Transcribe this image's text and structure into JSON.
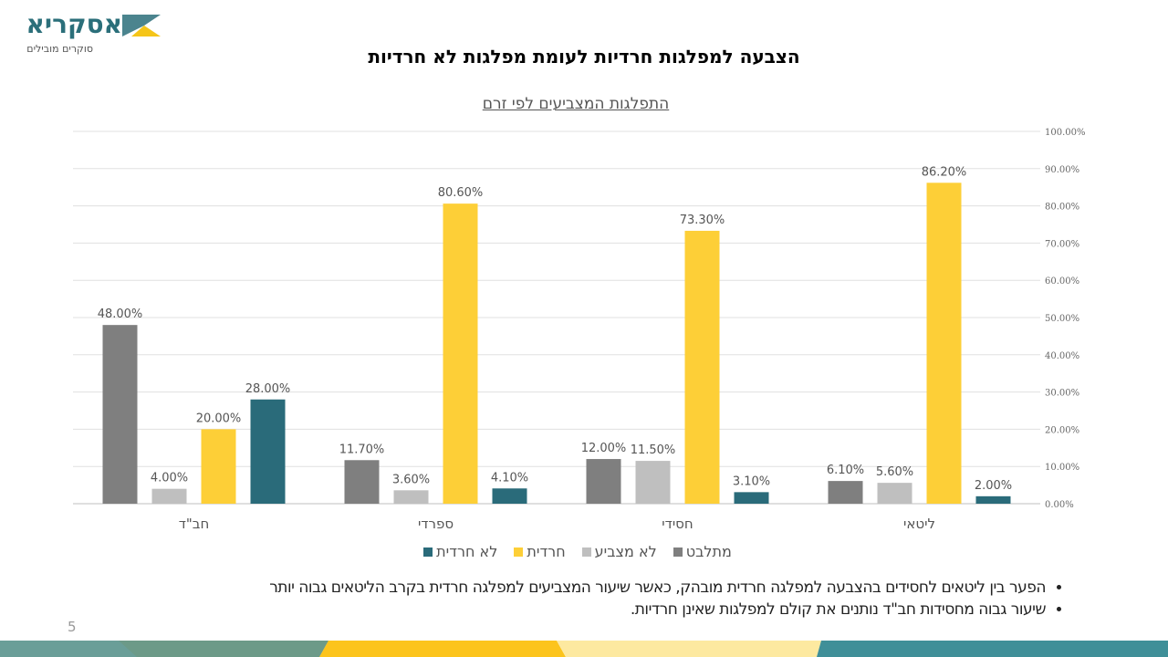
{
  "logo": {
    "name": "אסקריא",
    "tagline": "סוקרים מובילים"
  },
  "title": "הצבעה למפלגות חרדיות לעומת מפלגות לא חרדיות",
  "page_number": "5",
  "bullets": [
    "הפער בין ליטאים לחסידים בהצבעה למפלגה חרדית מובהק, כאשר שיעור המצביעים למפלגה חרדית בקרב הליטאים גבוה יותר",
    "שיעור גבוה מחסידות חב\"ד נותנים את קולם למפלגות שאינן חרדיות."
  ],
  "chart_data": {
    "type": "bar",
    "title": "התפלגות המצביעים לפי זרם",
    "categories": [
      "חב\"ד",
      "ספרדי",
      "חסידי",
      "ליטאי"
    ],
    "series": [
      {
        "name": "מתלבט",
        "color": "#7f7f7f",
        "values": [
          48.0,
          11.7,
          12.0,
          6.1
        ]
      },
      {
        "name": "לא מצביע",
        "color": "#bfbfbf",
        "values": [
          4.0,
          3.6,
          11.5,
          5.6
        ]
      },
      {
        "name": "חרדית",
        "color": "#fdcf37",
        "values": [
          20.0,
          80.6,
          73.3,
          86.2
        ]
      },
      {
        "name": "לא חרדית",
        "color": "#2a6b7a",
        "values": [
          28.0,
          4.1,
          3.1,
          2.0
        ]
      }
    ],
    "ylim": [
      0,
      100
    ],
    "yticks": [
      "0.00%",
      "10.00%",
      "20.00%",
      "30.00%",
      "40.00%",
      "50.00%",
      "60.00%",
      "70.00%",
      "80.00%",
      "90.00%",
      "100.00%"
    ],
    "yaxis_position": "right",
    "grid": true,
    "legend": "bottom"
  }
}
